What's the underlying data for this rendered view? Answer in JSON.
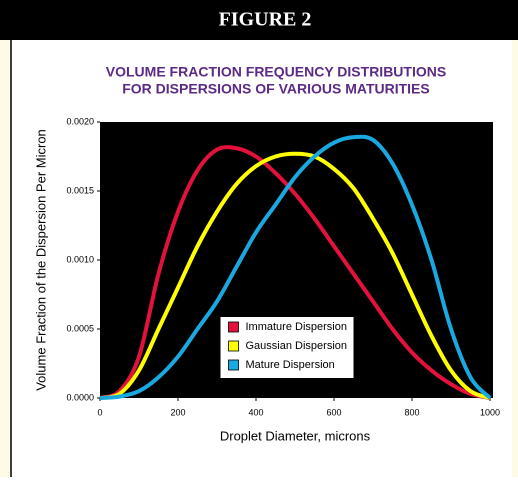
{
  "banner": "FIGURE 2",
  "chart_data": {
    "type": "line",
    "title": [
      "VOLUME FRACTION FREQUENCY DISTRIBUTIONS",
      "FOR DISPERSIONS OF VARIOUS MATURITIES"
    ],
    "x_label": "Droplet Diameter, microns",
    "y_label": "Volume Fraction of the Dispersion Per Micron",
    "x": [
      0,
      50,
      100,
      150,
      200,
      250,
      300,
      350,
      400,
      450,
      500,
      550,
      600,
      650,
      700,
      750,
      800,
      850,
      900,
      950,
      1000
    ],
    "series": [
      {
        "name": "Immature Dispersion",
        "color": "#e3123c",
        "values": [
          0,
          5e-05,
          0.0003,
          0.0009,
          0.00135,
          0.00165,
          0.0018,
          0.00181,
          0.00175,
          0.00163,
          0.00148,
          0.0013,
          0.0011,
          0.0009,
          0.0007,
          0.0005,
          0.00033,
          0.0002,
          0.0001,
          3e-05,
          0
        ]
      },
      {
        "name": "Gaussian Dispersion",
        "color": "#ffff00",
        "values": [
          0,
          3e-05,
          0.0002,
          0.0005,
          0.0008,
          0.0011,
          0.00135,
          0.00155,
          0.00168,
          0.00175,
          0.00177,
          0.00175,
          0.00166,
          0.00152,
          0.0013,
          0.00105,
          0.00075,
          0.00045,
          0.0002,
          5e-05,
          0
        ]
      },
      {
        "name": "Mature Dispersion",
        "color": "#1aa8e0",
        "values": [
          0,
          1e-05,
          5e-05,
          0.00015,
          0.0003,
          0.0005,
          0.0007,
          0.00095,
          0.0012,
          0.0014,
          0.0016,
          0.00175,
          0.00185,
          0.00189,
          0.00187,
          0.0017,
          0.0014,
          0.001,
          0.0005,
          0.00015,
          0
        ]
      }
    ],
    "xlim": [
      0,
      1000
    ],
    "xticks": [
      0,
      200,
      400,
      600,
      800,
      1000
    ],
    "ylim": [
      0,
      0.002
    ],
    "yticks": [
      {
        "value": 0,
        "label": "0.0000"
      },
      {
        "value": 0.0005,
        "label": "0.0005"
      },
      {
        "value": 0.001,
        "label": "0.0010"
      },
      {
        "value": 0.0015,
        "label": "0.0015"
      },
      {
        "value": 0.002,
        "label": "0.0020"
      }
    ],
    "legend": "lower center",
    "background": "#000000"
  }
}
